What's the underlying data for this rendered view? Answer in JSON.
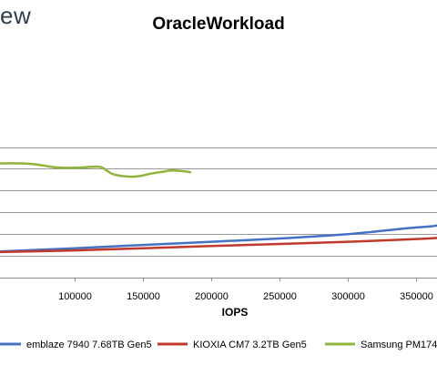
{
  "brand": {
    "text": "ew",
    "color": "#2f3e4a"
  },
  "chart_data": {
    "type": "line",
    "title": "OracleWorkload",
    "xlabel": "IOPS",
    "ylabel": "",
    "xlim": [
      45000,
      365000
    ],
    "ylim": [
      0,
      2.05
    ],
    "grid": true,
    "xticks": [
      100000,
      150000,
      200000,
      250000,
      300000,
      350000
    ],
    "xtick_labels": [
      "100000",
      "150000",
      "200000",
      "250000",
      "300000",
      "350000"
    ],
    "yticks": [
      0.2,
      0.4,
      0.6,
      0.8,
      1.0,
      1.2
    ],
    "legend_position": "bottom",
    "series": [
      {
        "name": "emblaze 7940 7.68TB Gen5",
        "color": "#4472c4",
        "points": [
          [
            45000,
            0.24
          ],
          [
            100000,
            0.27
          ],
          [
            150000,
            0.3
          ],
          [
            200000,
            0.33
          ],
          [
            250000,
            0.36
          ],
          [
            300000,
            0.4
          ],
          [
            340000,
            0.45
          ],
          [
            360000,
            0.47
          ],
          [
            365000,
            0.48
          ]
        ]
      },
      {
        "name": "KIOXIA CM7 3.2TB Gen5",
        "color": "#c0392b",
        "points": [
          [
            45000,
            0.235
          ],
          [
            100000,
            0.25
          ],
          [
            150000,
            0.27
          ],
          [
            200000,
            0.29
          ],
          [
            250000,
            0.31
          ],
          [
            300000,
            0.33
          ],
          [
            350000,
            0.355
          ],
          [
            365000,
            0.365
          ]
        ]
      },
      {
        "name": "Samsung PM174",
        "color": "#8fb43c",
        "points": [
          [
            45000,
            1.05
          ],
          [
            60000,
            1.05
          ],
          [
            72000,
            1.04
          ],
          [
            85000,
            1.015
          ],
          [
            100000,
            1.01
          ],
          [
            115000,
            1.02
          ],
          [
            120000,
            1.01
          ],
          [
            128000,
            0.95
          ],
          [
            140000,
            0.928
          ],
          [
            148000,
            0.935
          ],
          [
            155000,
            0.955
          ],
          [
            165000,
            0.975
          ],
          [
            170000,
            0.985
          ],
          [
            178000,
            0.98
          ],
          [
            185000,
            0.968
          ]
        ]
      }
    ]
  }
}
